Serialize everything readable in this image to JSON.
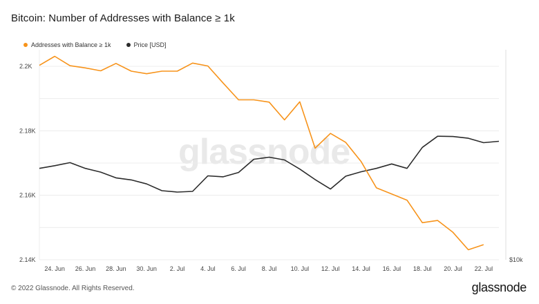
{
  "title": "Bitcoin: Number of Addresses with Balance ≥ 1k",
  "footer": {
    "copyright": "© 2022 Glassnode. All Rights Reserved.",
    "logo": "glassnode"
  },
  "watermark": "glassnode",
  "colors": {
    "addresses": "#f7931a",
    "price": "#2b2b2b",
    "grid": "#ececec",
    "axis_text": "#444444"
  },
  "chart_data": {
    "type": "line",
    "title": "Bitcoin: Number of Addresses with Balance ≥ 1k",
    "x": [
      "23 Jun",
      "24 Jun",
      "25 Jun",
      "26 Jun",
      "27 Jun",
      "28 Jun",
      "29 Jun",
      "30 Jun",
      "1 Jul",
      "2 Jul",
      "3 Jul",
      "4 Jul",
      "5 Jul",
      "6 Jul",
      "7 Jul",
      "8 Jul",
      "9 Jul",
      "10 Jul",
      "11 Jul",
      "12 Jul",
      "13 Jul",
      "14 Jul",
      "15 Jul",
      "16 Jul",
      "17 Jul",
      "18 Jul",
      "19 Jul",
      "20 Jul",
      "21 Jul",
      "22 Jul",
      "23 Jul"
    ],
    "x_tick_labels": [
      "24. Jun",
      "26. Jun",
      "28. Jun",
      "30. Jun",
      "2. Jul",
      "4. Jul",
      "6. Jul",
      "8. Jul",
      "10. Jul",
      "12. Jul",
      "14. Jul",
      "16. Jul",
      "18. Jul",
      "20. Jul",
      "22. Jul"
    ],
    "x_tick_index": [
      1,
      3,
      5,
      7,
      9,
      11,
      13,
      15,
      17,
      19,
      21,
      23,
      25,
      27,
      29
    ],
    "y_left": {
      "ticks": [
        2140,
        2160,
        2180,
        2200
      ],
      "tick_labels": [
        "2.14K",
        "2.16K",
        "2.18K",
        "2.2K"
      ],
      "range": [
        2140,
        2203
      ]
    },
    "y_right": {
      "tick_labels": [
        "$10k"
      ]
    },
    "series": [
      {
        "name": "Addresses with Balance ≥ 1k",
        "axis": "left",
        "values": [
          2200.3,
          2203.1,
          2200.2,
          2199.5,
          2198.6,
          2200.9,
          2198.5,
          2197.7,
          2198.5,
          2198.5,
          2201.0,
          2200.1,
          2194.8,
          2189.6,
          2189.6,
          2188.9,
          2183.4,
          2189.0,
          2174.6,
          2179.2,
          2176.4,
          2170.5,
          2162.3,
          2160.4,
          2158.5,
          2151.5,
          2152.2,
          2148.5,
          2143.1,
          2144.7,
          null
        ]
      },
      {
        "name": "Price [USD]",
        "axis": "right",
        "values": [
          20700,
          20780,
          20870,
          20700,
          20590,
          20420,
          20360,
          20240,
          20040,
          20000,
          20020,
          20480,
          20450,
          20580,
          20970,
          21030,
          20950,
          20680,
          20370,
          20090,
          20470,
          20600,
          20700,
          20830,
          20700,
          21320,
          21650,
          21640,
          21590,
          21460,
          21500
        ]
      }
    ],
    "grid": true,
    "legend_position": "top-left"
  }
}
